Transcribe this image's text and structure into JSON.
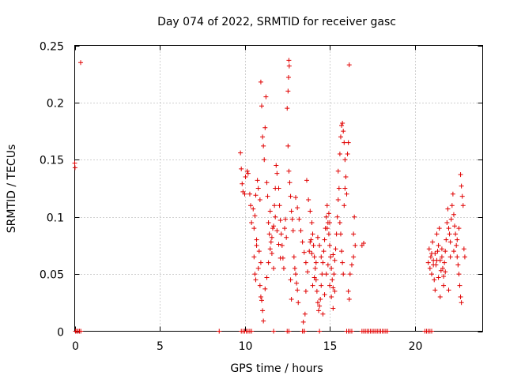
{
  "chart_data": {
    "type": "scatter",
    "title": "Day 074 of 2022, SRMTID for receiver gasc",
    "xlabel": "GPS time / hours",
    "ylabel": "SRMTID / TECUs",
    "xlim": [
      0,
      24
    ],
    "ylim": [
      0,
      0.25
    ],
    "grid": true,
    "marker": "plus",
    "color": "#e00000",
    "x_ticks": [
      {
        "value": 0,
        "label": "0"
      },
      {
        "value": 5,
        "label": "5"
      },
      {
        "value": 10,
        "label": "10"
      },
      {
        "value": 15,
        "label": "15"
      },
      {
        "value": 20,
        "label": "20"
      }
    ],
    "y_ticks": [
      {
        "value": 0,
        "label": "0"
      },
      {
        "value": 0.05,
        "label": "0.05"
      },
      {
        "value": 0.1,
        "label": "0.1"
      },
      {
        "value": 0.15,
        "label": "0.15"
      },
      {
        "value": 0.2,
        "label": "0.2"
      },
      {
        "value": 0.25,
        "label": "0.25"
      }
    ],
    "series": [
      {
        "name": "SRMTID",
        "points": [
          [
            0.0,
            0.147
          ],
          [
            0.02,
            0.143
          ],
          [
            0.35,
            0.235
          ],
          [
            0.05,
            0.0
          ],
          [
            0.12,
            0.0
          ],
          [
            0.2,
            0.0
          ],
          [
            0.28,
            0.0
          ],
          [
            0.36,
            0.0
          ],
          [
            8.5,
            0.0
          ],
          [
            9.75,
            0.156
          ],
          [
            9.8,
            0.142
          ],
          [
            9.85,
            0.129
          ],
          [
            9.9,
            0.122
          ],
          [
            10.0,
            0.12
          ],
          [
            10.05,
            0.135
          ],
          [
            10.15,
            0.14
          ],
          [
            10.2,
            0.138
          ],
          [
            10.3,
            0.12
          ],
          [
            10.35,
            0.11
          ],
          [
            10.4,
            0.095
          ],
          [
            10.5,
            0.107
          ],
          [
            10.55,
            0.09
          ],
          [
            10.6,
            0.101
          ],
          [
            10.65,
            0.119
          ],
          [
            10.7,
            0.08
          ],
          [
            10.75,
            0.132
          ],
          [
            10.8,
            0.125
          ],
          [
            10.85,
            0.07
          ],
          [
            10.9,
            0.115
          ],
          [
            10.95,
            0.06
          ],
          [
            10.55,
            0.065
          ],
          [
            10.6,
            0.05
          ],
          [
            10.65,
            0.045
          ],
          [
            10.7,
            0.075
          ],
          [
            10.8,
            0.055
          ],
          [
            10.9,
            0.04
          ],
          [
            10.95,
            0.03
          ],
          [
            11.0,
            0.027
          ],
          [
            11.05,
            0.018
          ],
          [
            11.1,
            0.009
          ],
          [
            10.95,
            0.218
          ],
          [
            11.0,
            0.197
          ],
          [
            11.05,
            0.17
          ],
          [
            11.1,
            0.162
          ],
          [
            11.15,
            0.15
          ],
          [
            11.2,
            0.178
          ],
          [
            11.25,
            0.205
          ],
          [
            11.3,
            0.13
          ],
          [
            11.35,
            0.118
          ],
          [
            11.4,
            0.095
          ],
          [
            11.45,
            0.085
          ],
          [
            11.5,
            0.105
          ],
          [
            11.55,
            0.078
          ],
          [
            11.6,
            0.068
          ],
          [
            11.65,
            0.09
          ],
          [
            11.7,
            0.055
          ],
          [
            11.75,
            0.11
          ],
          [
            11.8,
            0.125
          ],
          [
            11.85,
            0.145
          ],
          [
            11.9,
            0.138
          ],
          [
            11.2,
            0.037
          ],
          [
            11.3,
            0.047
          ],
          [
            11.4,
            0.06
          ],
          [
            11.5,
            0.072
          ],
          [
            11.6,
            0.082
          ],
          [
            11.7,
            0.092
          ],
          [
            11.8,
            0.1
          ],
          [
            11.9,
            0.088
          ],
          [
            12.0,
            0.076
          ],
          [
            12.1,
            0.064
          ],
          [
            12.0,
            0.125
          ],
          [
            12.05,
            0.11
          ],
          [
            12.1,
            0.097
          ],
          [
            12.15,
            0.085
          ],
          [
            12.2,
            0.075
          ],
          [
            12.25,
            0.064
          ],
          [
            12.3,
            0.055
          ],
          [
            12.35,
            0.09
          ],
          [
            12.4,
            0.098
          ],
          [
            12.45,
            0.082
          ],
          [
            12.5,
            0.195
          ],
          [
            12.55,
            0.21
          ],
          [
            12.6,
            0.237
          ],
          [
            12.62,
            0.232
          ],
          [
            12.58,
            0.222
          ],
          [
            12.55,
            0.162
          ],
          [
            12.6,
            0.14
          ],
          [
            12.65,
            0.13
          ],
          [
            12.7,
            0.118
          ],
          [
            12.75,
            0.105
          ],
          [
            12.8,
            0.098
          ],
          [
            12.85,
            0.088
          ],
          [
            12.9,
            0.065
          ],
          [
            12.95,
            0.055
          ],
          [
            13.0,
            0.05
          ],
          [
            13.05,
            0.042
          ],
          [
            13.1,
            0.036
          ],
          [
            13.15,
            0.025
          ],
          [
            12.7,
            0.045
          ],
          [
            12.75,
            0.028
          ],
          [
            13.0,
            0.117
          ],
          [
            13.1,
            0.108
          ],
          [
            13.2,
            0.098
          ],
          [
            13.3,
            0.088
          ],
          [
            13.4,
            0.078
          ],
          [
            13.5,
            0.069
          ],
          [
            13.6,
            0.06
          ],
          [
            13.7,
            0.052
          ],
          [
            13.8,
            0.07
          ],
          [
            13.9,
            0.08
          ],
          [
            13.5,
            0.0
          ],
          [
            13.45,
            0.008
          ],
          [
            13.55,
            0.015
          ],
          [
            13.6,
            0.035
          ],
          [
            13.65,
            0.132
          ],
          [
            13.75,
            0.115
          ],
          [
            13.85,
            0.105
          ],
          [
            13.95,
            0.095
          ],
          [
            14.0,
            0.085
          ],
          [
            14.05,
            0.075
          ],
          [
            14.1,
            0.065
          ],
          [
            14.15,
            0.055
          ],
          [
            14.2,
            0.045
          ],
          [
            14.25,
            0.035
          ],
          [
            14.3,
            0.025
          ],
          [
            14.35,
            0.018
          ],
          [
            14.4,
            0.022
          ],
          [
            14.45,
            0.028
          ],
          [
            14.5,
            0.04
          ],
          [
            14.55,
            0.05
          ],
          [
            14.6,
            0.06
          ],
          [
            14.65,
            0.07
          ],
          [
            14.7,
            0.08
          ],
          [
            14.75,
            0.09
          ],
          [
            14.8,
            0.1
          ],
          [
            14.85,
            0.11
          ],
          [
            14.9,
            0.095
          ],
          [
            14.95,
            0.085
          ],
          [
            15.0,
            0.075
          ],
          [
            15.05,
            0.065
          ],
          [
            15.1,
            0.055
          ],
          [
            15.15,
            0.045
          ],
          [
            15.2,
            0.038
          ],
          [
            15.25,
            0.05
          ],
          [
            15.3,
            0.062
          ],
          [
            15.35,
            0.072
          ],
          [
            15.4,
            0.085
          ],
          [
            15.45,
            0.1
          ],
          [
            15.5,
            0.115
          ],
          [
            15.55,
            0.125
          ],
          [
            14.6,
            0.015
          ],
          [
            14.7,
            0.032
          ],
          [
            14.8,
            0.05
          ],
          [
            14.9,
            0.058
          ],
          [
            15.0,
            0.04
          ],
          [
            15.1,
            0.03
          ],
          [
            15.2,
            0.02
          ],
          [
            14.5,
            0.065
          ],
          [
            14.4,
            0.075
          ],
          [
            14.3,
            0.082
          ],
          [
            15.5,
            0.14
          ],
          [
            15.6,
            0.155
          ],
          [
            15.65,
            0.17
          ],
          [
            15.7,
            0.18
          ],
          [
            15.75,
            0.182
          ],
          [
            15.8,
            0.175
          ],
          [
            15.85,
            0.165
          ],
          [
            15.9,
            0.15
          ],
          [
            15.95,
            0.135
          ],
          [
            16.0,
            0.12
          ],
          [
            15.6,
            0.095
          ],
          [
            15.65,
            0.085
          ],
          [
            15.7,
            0.07
          ],
          [
            15.75,
            0.06
          ],
          [
            15.8,
            0.05
          ],
          [
            15.85,
            0.11
          ],
          [
            15.9,
            0.125
          ],
          [
            16.05,
            0.155
          ],
          [
            16.1,
            0.165
          ],
          [
            16.15,
            0.233
          ],
          [
            16.1,
            0.035
          ],
          [
            16.15,
            0.028
          ],
          [
            16.2,
            0.05
          ],
          [
            16.3,
            0.058
          ],
          [
            16.4,
            0.085
          ],
          [
            16.45,
            0.1
          ],
          [
            16.5,
            0.075
          ],
          [
            16.9,
            0.075
          ],
          [
            17.0,
            0.077
          ],
          [
            16.4,
            0.065
          ],
          [
            15.3,
            0.035
          ],
          [
            15.2,
            0.067
          ],
          [
            15.0,
            0.095
          ],
          [
            14.95,
            0.103
          ],
          [
            14.85,
            0.09
          ],
          [
            14.2,
            0.06
          ],
          [
            14.1,
            0.047
          ],
          [
            14.0,
            0.04
          ],
          [
            13.95,
            0.068
          ],
          [
            13.85,
            0.078
          ],
          [
            9.8,
            0.0
          ],
          [
            9.9,
            0.0
          ],
          [
            10.0,
            0.0
          ],
          [
            10.1,
            0.0
          ],
          [
            10.2,
            0.0
          ],
          [
            10.3,
            0.0
          ],
          [
            10.4,
            0.0
          ],
          [
            11.7,
            0.0
          ],
          [
            12.5,
            0.0
          ],
          [
            12.6,
            0.0
          ],
          [
            13.5,
            0.0
          ],
          [
            13.4,
            0.0
          ],
          [
            14.4,
            0.0
          ],
          [
            16.0,
            0.0
          ],
          [
            16.1,
            0.0
          ],
          [
            16.2,
            0.0
          ],
          [
            16.3,
            0.0
          ],
          [
            16.9,
            0.0
          ],
          [
            17.0,
            0.0
          ],
          [
            17.1,
            0.0
          ],
          [
            17.2,
            0.0
          ],
          [
            17.3,
            0.0
          ],
          [
            17.4,
            0.0
          ],
          [
            17.5,
            0.0
          ],
          [
            17.6,
            0.0
          ],
          [
            17.7,
            0.0
          ],
          [
            17.8,
            0.0
          ],
          [
            17.9,
            0.0
          ],
          [
            18.0,
            0.0
          ],
          [
            18.1,
            0.0
          ],
          [
            18.2,
            0.0
          ],
          [
            18.3,
            0.0
          ],
          [
            18.4,
            0.0
          ],
          [
            20.6,
            0.0
          ],
          [
            20.7,
            0.0
          ],
          [
            20.8,
            0.0
          ],
          [
            20.9,
            0.0
          ],
          [
            21.0,
            0.0
          ],
          [
            20.8,
            0.06
          ],
          [
            20.85,
            0.072
          ],
          [
            20.9,
            0.055
          ],
          [
            20.95,
            0.065
          ],
          [
            21.0,
            0.05
          ],
          [
            21.05,
            0.078
          ],
          [
            21.1,
            0.062
          ],
          [
            21.15,
            0.045
          ],
          [
            21.2,
            0.068
          ],
          [
            21.25,
            0.058
          ],
          [
            21.3,
            0.085
          ],
          [
            21.35,
            0.07
          ],
          [
            21.4,
            0.075
          ],
          [
            21.45,
            0.09
          ],
          [
            21.5,
            0.062
          ],
          [
            21.55,
            0.053
          ],
          [
            21.6,
            0.065
          ],
          [
            21.65,
            0.055
          ],
          [
            21.7,
            0.048
          ],
          [
            21.75,
            0.06
          ],
          [
            21.8,
            0.07
          ],
          [
            21.85,
            0.08
          ],
          [
            21.9,
            0.095
          ],
          [
            21.95,
            0.107
          ],
          [
            22.0,
            0.09
          ],
          [
            22.05,
            0.085
          ],
          [
            22.1,
            0.078
          ],
          [
            22.15,
            0.098
          ],
          [
            22.2,
            0.11
          ],
          [
            22.25,
            0.12
          ],
          [
            22.3,
            0.102
          ],
          [
            22.35,
            0.092
          ],
          [
            22.4,
            0.085
          ],
          [
            22.45,
            0.075
          ],
          [
            22.5,
            0.065
          ],
          [
            22.55,
            0.058
          ],
          [
            22.6,
            0.05
          ],
          [
            22.65,
            0.04
          ],
          [
            22.7,
            0.03
          ],
          [
            22.75,
            0.025
          ],
          [
            22.7,
            0.137
          ],
          [
            22.75,
            0.127
          ],
          [
            22.8,
            0.118
          ],
          [
            22.85,
            0.11
          ],
          [
            22.9,
            0.072
          ],
          [
            22.95,
            0.065
          ],
          [
            21.2,
            0.036
          ],
          [
            21.5,
            0.03
          ],
          [
            21.7,
            0.04
          ],
          [
            22.0,
            0.036
          ],
          [
            21.0,
            0.068
          ],
          [
            21.1,
            0.058
          ],
          [
            21.3,
            0.062
          ],
          [
            21.4,
            0.047
          ],
          [
            21.6,
            0.072
          ],
          [
            21.8,
            0.052
          ],
          [
            22.1,
            0.065
          ],
          [
            22.3,
            0.07
          ],
          [
            22.5,
            0.08
          ],
          [
            22.6,
            0.09
          ]
        ]
      }
    ]
  }
}
